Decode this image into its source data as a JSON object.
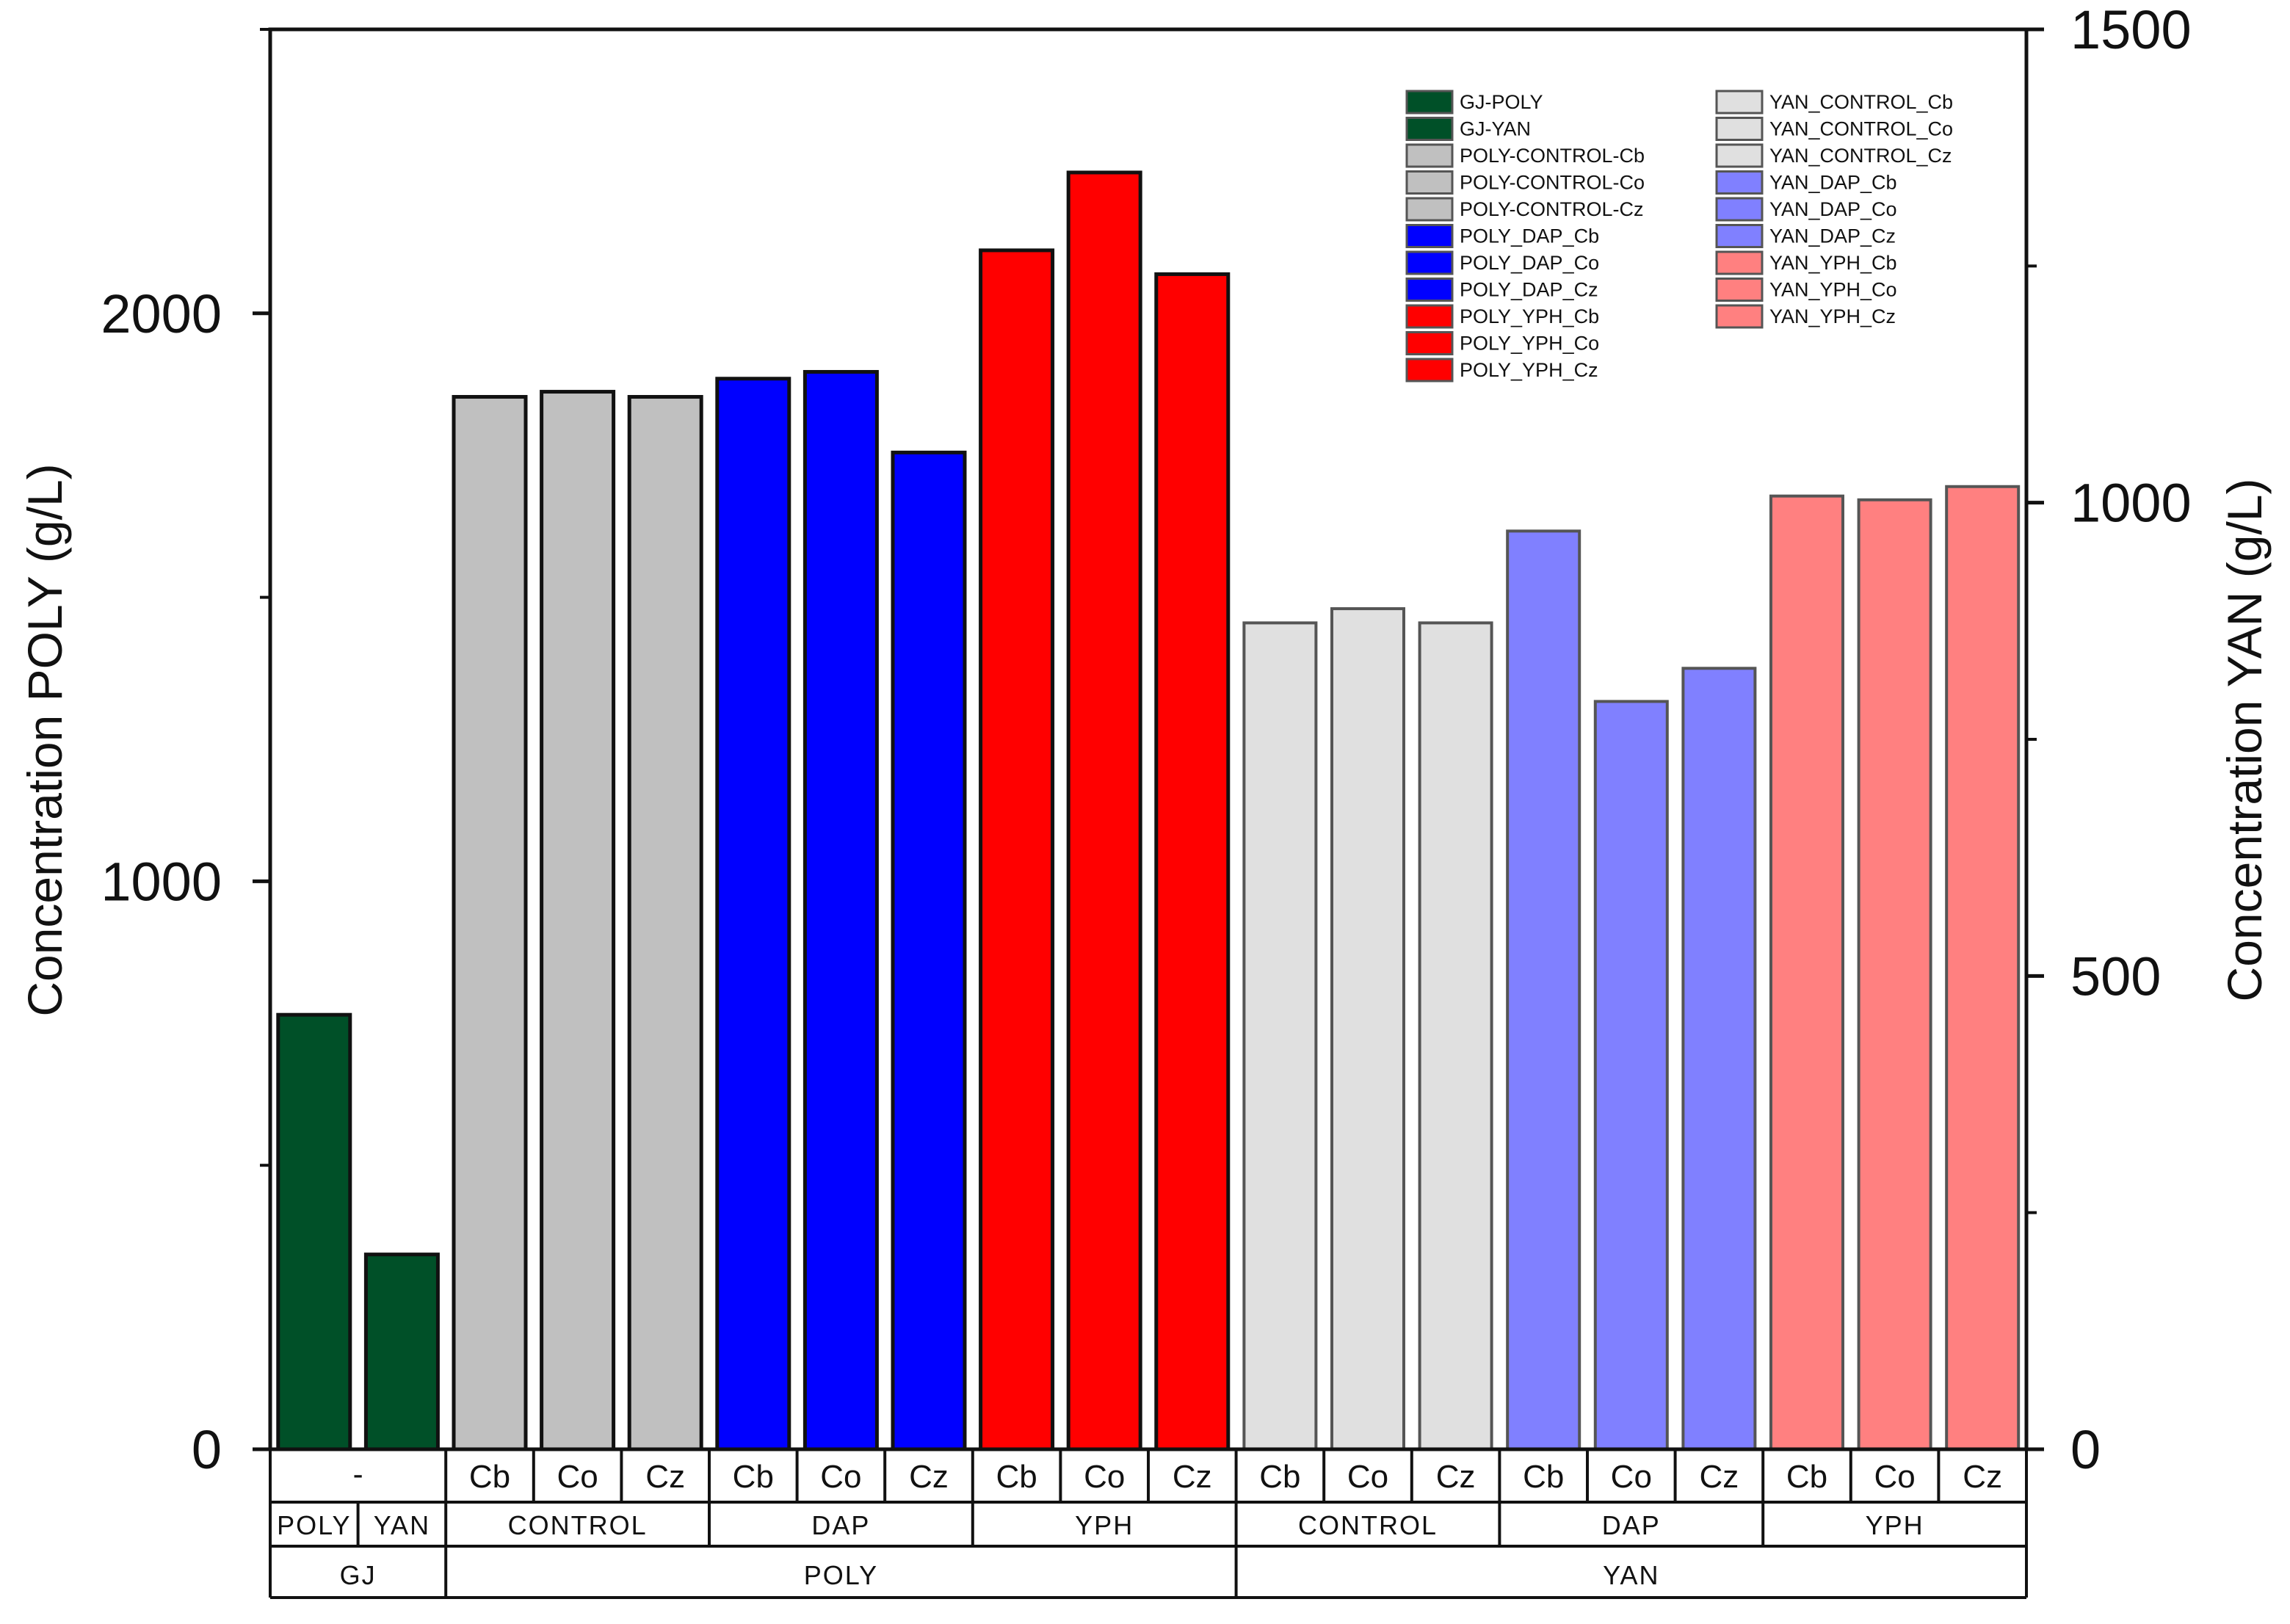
{
  "chart_data": {
    "type": "bar",
    "left_axis": {
      "title": "Concentration POLY (g/L)",
      "range": [
        0,
        2500
      ],
      "ticks": [
        0,
        1000,
        2000
      ],
      "minor_ticks": [
        500,
        1500,
        2500
      ]
    },
    "right_axis": {
      "title": "Concentration YAN (g/L)",
      "range": [
        0,
        1500
      ],
      "ticks": [
        0,
        500,
        1000,
        1500
      ],
      "minor_ticks": [
        250,
        750,
        1250
      ]
    },
    "categories": [
      "-",
      "-",
      "Cb",
      "Co",
      "Cz",
      "Cb",
      "Co",
      "Cz",
      "Cb",
      "Co",
      "Cz",
      "Cb",
      "Co",
      "Cz",
      "Cb",
      "Co",
      "Cz",
      "Cb",
      "Co",
      "Cz"
    ],
    "bars": [
      {
        "series": "GJ-POLY",
        "axis": "left",
        "value": 765,
        "color": "#005028"
      },
      {
        "series": "GJ-YAN",
        "axis": "left",
        "value": 343,
        "color": "#005028"
      },
      {
        "series": "POLY-CONTROL-Cb",
        "axis": "left",
        "value": 1853,
        "color": "#c0c0c0"
      },
      {
        "series": "POLY-CONTROL-Co",
        "axis": "left",
        "value": 1862,
        "color": "#c0c0c0"
      },
      {
        "series": "POLY-CONTROL-Cz",
        "axis": "left",
        "value": 1853,
        "color": "#c0c0c0"
      },
      {
        "series": "POLY_DAP_Cb",
        "axis": "left",
        "value": 1885,
        "color": "#0000ff"
      },
      {
        "series": "POLY_DAP_Co",
        "axis": "left",
        "value": 1897,
        "color": "#0000ff"
      },
      {
        "series": "POLY_DAP_Cz",
        "axis": "left",
        "value": 1755,
        "color": "#0000ff"
      },
      {
        "series": "POLY_YPH_Cb",
        "axis": "left",
        "value": 2111,
        "color": "#ff0000"
      },
      {
        "series": "POLY_YPH_Co",
        "axis": "left",
        "value": 2248,
        "color": "#ff0000"
      },
      {
        "series": "POLY_YPH_Cz",
        "axis": "left",
        "value": 2069,
        "color": "#ff0000"
      },
      {
        "series": "YAN_CONTROL_Cb",
        "axis": "right",
        "value": 873,
        "color": "#e0e0e0"
      },
      {
        "series": "YAN_CONTROL_Co",
        "axis": "right",
        "value": 888,
        "color": "#e0e0e0"
      },
      {
        "series": "YAN_CONTROL_Cz",
        "axis": "right",
        "value": 873,
        "color": "#e0e0e0"
      },
      {
        "series": "YAN_DAP_Cb",
        "axis": "right",
        "value": 970,
        "color": "#8080ff"
      },
      {
        "series": "YAN_DAP_Co",
        "axis": "right",
        "value": 790,
        "color": "#8080ff"
      },
      {
        "series": "YAN_DAP_Cz",
        "axis": "right",
        "value": 825,
        "color": "#8080ff"
      },
      {
        "series": "YAN_YPH_Cb",
        "axis": "right",
        "value": 1007,
        "color": "#ff8080"
      },
      {
        "series": "YAN_YPH_Co",
        "axis": "right",
        "value": 1003,
        "color": "#ff8080"
      },
      {
        "series": "YAN_YPH_Cz",
        "axis": "right",
        "value": 1017,
        "color": "#ff8080"
      }
    ],
    "x_level2": [
      {
        "label": "POLY",
        "from": 0,
        "to": 0
      },
      {
        "label": "YAN",
        "from": 1,
        "to": 1
      },
      {
        "label": "CONTROL",
        "from": 2,
        "to": 4
      },
      {
        "label": "DAP",
        "from": 5,
        "to": 7
      },
      {
        "label": "YPH",
        "from": 8,
        "to": 10
      },
      {
        "label": "CONTROL",
        "from": 11,
        "to": 13
      },
      {
        "label": "DAP",
        "from": 14,
        "to": 16
      },
      {
        "label": "YPH",
        "from": 17,
        "to": 19
      }
    ],
    "x_level3": [
      {
        "label": "GJ",
        "from": 0,
        "to": 1
      },
      {
        "label": "POLY",
        "from": 2,
        "to": 10
      },
      {
        "label": "YAN",
        "from": 11,
        "to": 19
      }
    ],
    "legend": {
      "position": "top-right",
      "columns": [
        [
          {
            "label": "GJ-POLY",
            "color": "#005028"
          },
          {
            "label": "GJ-YAN",
            "color": "#005028"
          },
          {
            "label": "POLY-CONTROL-Cb",
            "color": "#c0c0c0"
          },
          {
            "label": "POLY-CONTROL-Co",
            "color": "#c0c0c0"
          },
          {
            "label": "POLY-CONTROL-Cz",
            "color": "#c0c0c0"
          },
          {
            "label": "POLY_DAP_Cb",
            "color": "#0000ff"
          },
          {
            "label": "POLY_DAP_Co",
            "color": "#0000ff"
          },
          {
            "label": "POLY_DAP_Cz",
            "color": "#0000ff"
          },
          {
            "label": "POLY_YPH_Cb",
            "color": "#ff0000"
          },
          {
            "label": "POLY_YPH_Co",
            "color": "#ff0000"
          },
          {
            "label": "POLY_YPH_Cz",
            "color": "#ff0000"
          }
        ],
        [
          {
            "label": "YAN_CONTROL_Cb",
            "color": "#e0e0e0"
          },
          {
            "label": "YAN_CONTROL_Co",
            "color": "#e0e0e0"
          },
          {
            "label": "YAN_CONTROL_Cz",
            "color": "#e0e0e0"
          },
          {
            "label": "YAN_DAP_Cb",
            "color": "#8080ff"
          },
          {
            "label": "YAN_DAP_Co",
            "color": "#8080ff"
          },
          {
            "label": "YAN_DAP_Cz",
            "color": "#8080ff"
          },
          {
            "label": "YAN_YPH_Cb",
            "color": "#ff8080"
          },
          {
            "label": "YAN_YPH_Co",
            "color": "#ff8080"
          },
          {
            "label": "YAN_YPH_Cz",
            "color": "#ff8080"
          }
        ]
      ]
    }
  }
}
